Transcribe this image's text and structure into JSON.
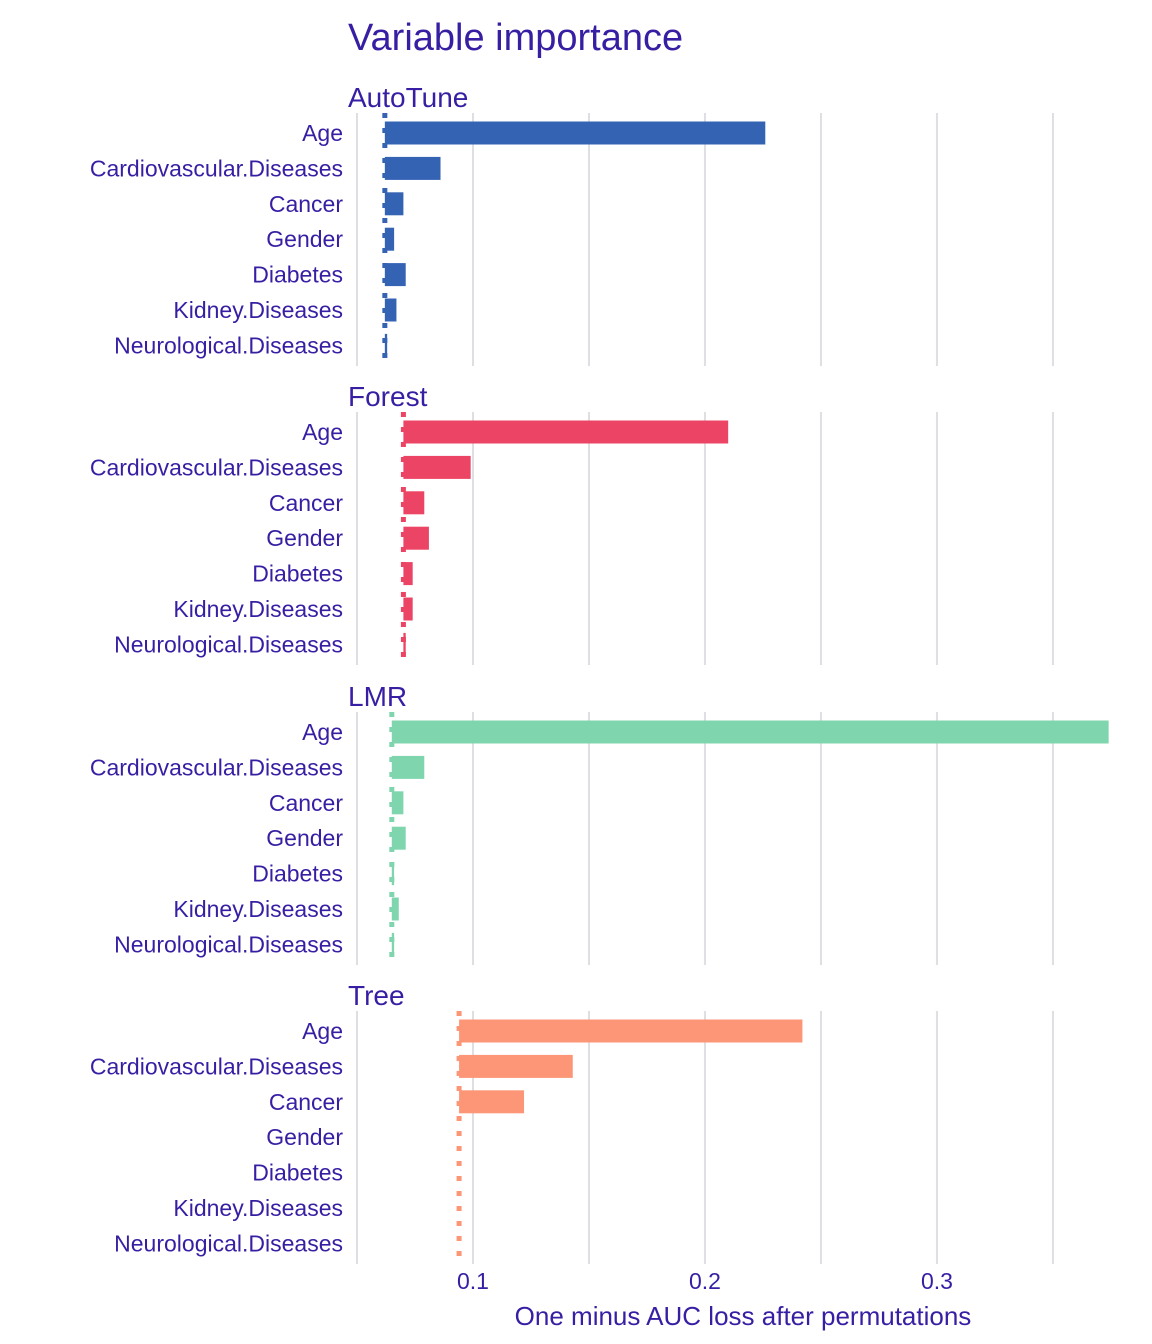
{
  "chart_data": {
    "type": "bar",
    "title": "Variable importance",
    "xlabel": "One minus AUC loss after permutations",
    "ylabel": "",
    "xlim": [
      0.05,
      0.372
    ],
    "xticks": [
      0.1,
      0.2,
      0.3
    ],
    "xtick_labels": [
      "0.1",
      "0.2",
      "0.3"
    ],
    "grid": true,
    "legend": "none",
    "categories": [
      "Age",
      "Cardiovascular.Diseases",
      "Cancer",
      "Gender",
      "Diabetes",
      "Kidney.Diseases",
      "Neurological.Diseases"
    ],
    "panels": [
      {
        "name": "AutoTune",
        "color": "#3563b4",
        "baseline": 0.062,
        "values": [
          0.226,
          0.086,
          0.07,
          0.066,
          0.071,
          0.067,
          0.063
        ]
      },
      {
        "name": "Forest",
        "color": "#ec4464",
        "baseline": 0.07,
        "values": [
          0.21,
          0.099,
          0.079,
          0.081,
          0.074,
          0.074,
          0.071
        ]
      },
      {
        "name": "LMR",
        "color": "#7fd6ae",
        "baseline": 0.065,
        "values": [
          0.374,
          0.079,
          0.07,
          0.071,
          0.066,
          0.068,
          0.066
        ]
      },
      {
        "name": "Tree",
        "color": "#fc9677",
        "baseline": 0.094,
        "values": [
          0.242,
          0.143,
          0.122,
          0.094,
          0.094,
          0.094,
          0.094
        ]
      }
    ]
  }
}
